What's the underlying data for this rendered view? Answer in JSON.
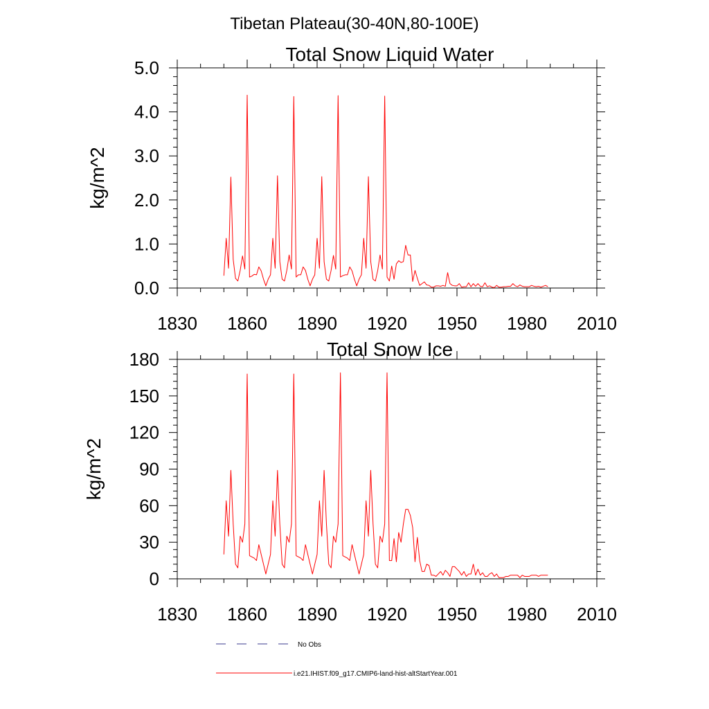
{
  "page_title": "Tibetan Plateau(30-40N,80-100E)",
  "legend": {
    "obs_label": "No Obs",
    "model_label": "i.e21.IHIST.f09_g17.CMIP6-land-hist-altStartYear.001",
    "obs_color": "#3a3a8c",
    "model_color": "#ff0000"
  },
  "chart_data": [
    {
      "type": "line",
      "title": "Total Snow Liquid Water",
      "ylabel": "kg/m^2",
      "xlabel": "",
      "xlim": [
        1830,
        2010
      ],
      "ylim": [
        0,
        5
      ],
      "xticks": [
        1830,
        1860,
        1890,
        1920,
        1950,
        1980,
        2010
      ],
      "yticks": [
        0,
        1,
        2,
        3,
        4,
        5
      ],
      "ytick_labels": [
        "0.0",
        "1.0",
        "2.0",
        "3.0",
        "4.0",
        "5.0"
      ],
      "grid": false,
      "series": [
        {
          "color": "#ff0000",
          "x": [
            1850,
            1851,
            1852,
            1853,
            1854,
            1855,
            1856,
            1857,
            1858,
            1859,
            1860,
            1861,
            1862,
            1863,
            1864,
            1865,
            1866,
            1867,
            1868,
            1869,
            1870,
            1871,
            1872,
            1873,
            1874,
            1875,
            1876,
            1877,
            1878,
            1879,
            1880,
            1881,
            1882,
            1883,
            1884,
            1885,
            1886,
            1887,
            1888,
            1889,
            1890,
            1891,
            1892,
            1893,
            1894,
            1895,
            1896,
            1897,
            1898,
            1899,
            1900,
            1901,
            1902,
            1903,
            1904,
            1905,
            1906,
            1907,
            1908,
            1909,
            1910,
            1911,
            1912,
            1913,
            1914,
            1915,
            1916,
            1917,
            1918,
            1919,
            1920,
            1921,
            1922,
            1923,
            1924,
            1925,
            1926,
            1927,
            1928,
            1929,
            1930,
            1931,
            1932,
            1933,
            1934,
            1935,
            1936,
            1937,
            1938,
            1939,
            1940,
            1941,
            1942,
            1943,
            1944,
            1945,
            1946,
            1947,
            1948,
            1949,
            1950,
            1951,
            1952,
            1953,
            1954,
            1955,
            1956,
            1957,
            1958,
            1959,
            1960,
            1961,
            1962,
            1963,
            1964,
            1965,
            1966,
            1967,
            1968,
            1969,
            1970,
            1971,
            1972,
            1973,
            1974,
            1975,
            1976,
            1977,
            1978,
            1979,
            1980,
            1981,
            1982,
            1983,
            1984,
            1985,
            1986,
            1987,
            1988,
            1989
          ],
          "values": [
            0.28,
            1.13,
            0.45,
            2.52,
            0.65,
            0.22,
            0.16,
            0.4,
            0.73,
            0.43,
            4.38,
            0.25,
            0.27,
            0.31,
            0.3,
            0.48,
            0.39,
            0.2,
            0.05,
            0.2,
            0.3,
            1.13,
            0.45,
            2.55,
            0.6,
            0.2,
            0.16,
            0.4,
            0.75,
            0.43,
            4.35,
            0.25,
            0.3,
            0.3,
            0.48,
            0.4,
            0.2,
            0.05,
            0.2,
            0.3,
            1.13,
            0.45,
            2.53,
            0.6,
            0.2,
            0.16,
            0.4,
            0.74,
            0.43,
            4.37,
            0.25,
            0.28,
            0.3,
            0.3,
            0.48,
            0.39,
            0.2,
            0.05,
            0.2,
            0.3,
            1.13,
            0.45,
            2.53,
            0.6,
            0.2,
            0.16,
            0.4,
            0.75,
            0.43,
            4.36,
            0.25,
            0.16,
            0.5,
            0.2,
            0.55,
            0.62,
            0.58,
            0.6,
            0.97,
            0.75,
            0.75,
            0.15,
            0.4,
            0.22,
            0.06,
            0.1,
            0.14,
            0.07,
            0.06,
            0.02,
            0.02,
            0.05,
            0.05,
            0.04,
            0.06,
            0.04,
            0.35,
            0.1,
            0.06,
            0.05,
            0.05,
            0.1,
            0.02,
            0.03,
            0.03,
            0.12,
            0.03,
            0.1,
            0.04,
            0.1,
            0.04,
            0.03,
            0.12,
            0.03,
            0.05,
            0.02,
            0.01,
            0.06,
            0.02,
            0.02,
            0.03,
            0.03,
            0.04,
            0.04,
            0.1,
            0.05,
            0.03,
            0.07,
            0.04,
            0.03,
            0.03,
            0.03,
            0.06,
            0.04,
            0.03,
            0.04,
            0.02,
            0.04,
            0.06,
            0.03
          ]
        }
      ]
    },
    {
      "type": "line",
      "title": "Total Snow Ice",
      "ylabel": "kg/m^2",
      "xlabel": "",
      "xlim": [
        1830,
        2010
      ],
      "ylim": [
        0,
        180
      ],
      "xticks": [
        1830,
        1860,
        1890,
        1920,
        1950,
        1980,
        2010
      ],
      "yticks": [
        0,
        30,
        60,
        90,
        120,
        150,
        180
      ],
      "ytick_labels": [
        "0",
        "30",
        "60",
        "90",
        "120",
        "150",
        "180"
      ],
      "grid": false,
      "series": [
        {
          "color": "#ff0000",
          "x": [
            1850,
            1851,
            1852,
            1853,
            1854,
            1855,
            1856,
            1857,
            1858,
            1859,
            1860,
            1861,
            1862,
            1863,
            1864,
            1865,
            1866,
            1867,
            1868,
            1869,
            1870,
            1871,
            1872,
            1873,
            1874,
            1875,
            1876,
            1877,
            1878,
            1879,
            1880,
            1881,
            1882,
            1883,
            1884,
            1885,
            1886,
            1887,
            1888,
            1889,
            1890,
            1891,
            1892,
            1893,
            1894,
            1895,
            1896,
            1897,
            1898,
            1899,
            1900,
            1901,
            1902,
            1903,
            1904,
            1905,
            1906,
            1907,
            1908,
            1909,
            1910,
            1911,
            1912,
            1913,
            1914,
            1915,
            1916,
            1917,
            1918,
            1919,
            1920,
            1921,
            1922,
            1923,
            1924,
            1925,
            1926,
            1927,
            1928,
            1929,
            1930,
            1931,
            1932,
            1933,
            1934,
            1935,
            1936,
            1937,
            1938,
            1939,
            1940,
            1941,
            1942,
            1943,
            1944,
            1945,
            1946,
            1947,
            1948,
            1949,
            1950,
            1951,
            1952,
            1953,
            1954,
            1955,
            1956,
            1957,
            1958,
            1959,
            1960,
            1961,
            1962,
            1963,
            1964,
            1965,
            1966,
            1967,
            1968,
            1969,
            1970,
            1971,
            1972,
            1973,
            1974,
            1975,
            1976,
            1977,
            1978,
            1979,
            1980,
            1981,
            1982,
            1983,
            1984,
            1985,
            1986,
            1987,
            1988,
            1989
          ],
          "values": [
            20,
            64,
            35,
            89,
            45,
            12,
            9,
            35,
            30,
            45,
            168,
            19,
            18,
            17,
            15,
            28,
            20,
            12,
            4,
            12,
            20,
            64,
            35,
            89,
            45,
            12,
            9,
            35,
            30,
            45,
            168,
            19,
            18,
            17,
            15,
            28,
            20,
            12,
            4,
            12,
            20,
            64,
            35,
            89,
            45,
            12,
            9,
            35,
            30,
            45,
            169,
            19,
            18,
            17,
            15,
            28,
            20,
            12,
            4,
            12,
            20,
            64,
            35,
            89,
            45,
            12,
            9,
            35,
            30,
            45,
            169,
            15,
            15,
            33,
            14,
            38,
            30,
            45,
            57,
            57,
            52,
            42,
            14,
            34,
            15,
            6,
            6,
            12,
            11,
            3,
            3,
            2,
            4,
            6,
            3,
            7,
            5,
            2,
            10,
            10,
            8,
            6,
            3,
            6,
            2,
            4,
            4,
            12,
            3,
            8,
            3,
            5,
            2,
            2,
            4,
            5,
            2,
            4,
            1,
            1,
            1,
            2,
            2,
            3,
            3,
            3,
            3,
            1,
            3,
            2,
            2,
            2,
            3,
            3,
            3,
            2,
            3,
            3,
            3,
            3
          ]
        }
      ]
    }
  ]
}
